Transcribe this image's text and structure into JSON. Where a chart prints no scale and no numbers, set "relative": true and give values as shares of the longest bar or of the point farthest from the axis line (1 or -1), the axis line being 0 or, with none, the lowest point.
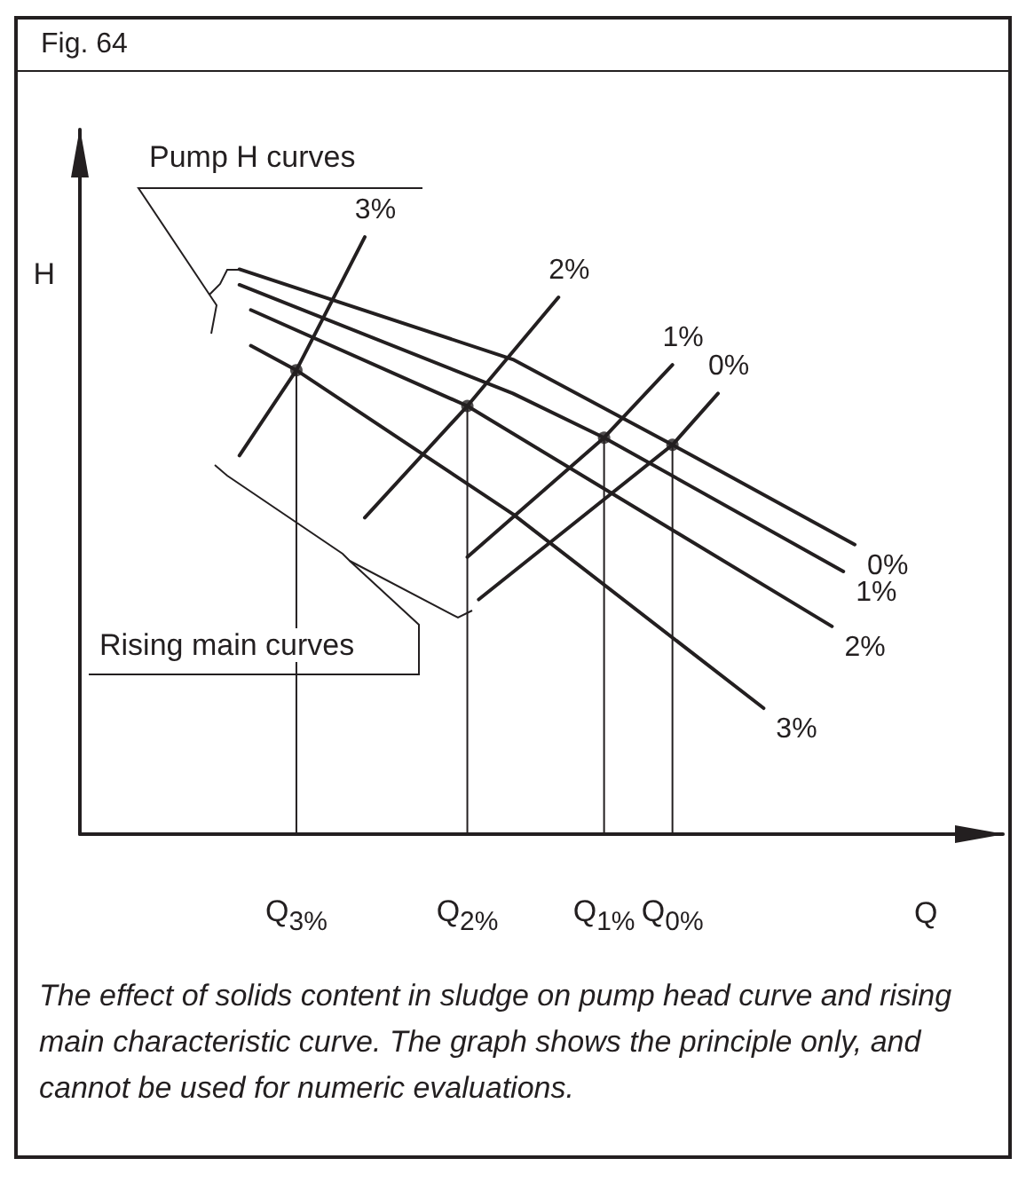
{
  "chart_data": {
    "type": "line",
    "title": "Fig. 64",
    "xlabel": "Q",
    "ylabel": "H",
    "relative": true,
    "tick_labels": "x",
    "annotations": [
      "Pump H curves",
      "Rising main curves",
      "The effect of solids content in sludge on pump head curve and rising main characteristic curve. The graph shows the principle only, and cannot be used for numeric evaluations."
    ],
    "categories": [
      null,
      null,
      null,
      null,
      null,
      null,
      null,
      null,
      null,
      null,
      null,
      null,
      null,
      null,
      null,
      null,
      null,
      null,
      null,
      "Q$_{3%}$",
      null,
      null,
      null,
      null,
      null,
      null,
      null,
      null,
      null,
      null,
      null,
      null,
      null,
      null,
      "Q$_{2%}$",
      null,
      null,
      null,
      null,
      null,
      null,
      null,
      null,
      null,
      null,
      null,
      "Q$_{1%}$",
      null,
      null,
      null,
      null,
      null,
      "Q$_{0%}$",
      null,
      null,
      null,
      null,
      null,
      null,
      null,
      null,
      null,
      null,
      null,
      null,
      null,
      null,
      null,
      null,
      null,
      null,
      null,
      null,
      null,
      null,
      null,
      null,
      null,
      null,
      null,
      null,
      null
    ],
    "series": [
      {
        "name": "0%",
        "color": "#231f20",
        "values": [
          null,
          null,
          null,
          null,
          null,
          null,
          null,
          null,
          null,
          null,
          null,
          null,
          null,
          null,
          0.946,
          null,
          null,
          null,
          null,
          null,
          null,
          null,
          null,
          null,
          null,
          null,
          null,
          null,
          null,
          null,
          null,
          null,
          null,
          null,
          null,
          null,
          null,
          null,
          0.795,
          null,
          null,
          null,
          null,
          null,
          null,
          null,
          null,
          null,
          null,
          null,
          null,
          null,
          0.652,
          null,
          null,
          null,
          null,
          null,
          null,
          null,
          null,
          null,
          null,
          null,
          null,
          null,
          null,
          null,
          0.485,
          null,
          null,
          null,
          null,
          null,
          null,
          null,
          null,
          null,
          null,
          null,
          null,
          null
        ]
      },
      {
        "name": "1%",
        "color": "#231f20",
        "values": [
          null,
          null,
          null,
          null,
          null,
          null,
          null,
          null,
          null,
          null,
          null,
          null,
          null,
          null,
          0.92,
          null,
          null,
          null,
          null,
          null,
          null,
          null,
          null,
          null,
          null,
          null,
          null,
          null,
          null,
          null,
          null,
          null,
          null,
          null,
          null,
          null,
          null,
          null,
          0.738,
          null,
          null,
          null,
          null,
          null,
          null,
          null,
          0.664,
          null,
          null,
          null,
          null,
          null,
          null,
          null,
          null,
          null,
          null,
          null,
          null,
          null,
          null,
          null,
          null,
          null,
          null,
          null,
          null,
          0.44,
          null,
          null,
          null,
          null,
          null,
          null,
          null,
          null,
          null,
          null,
          null,
          null,
          null,
          null
        ]
      },
      {
        "name": "2%",
        "color": "#231f20",
        "values": [
          null,
          null,
          null,
          null,
          null,
          null,
          null,
          null,
          null,
          null,
          null,
          null,
          null,
          null,
          null,
          0.878,
          null,
          null,
          null,
          null,
          null,
          null,
          null,
          null,
          null,
          null,
          null,
          null,
          null,
          null,
          null,
          null,
          null,
          null,
          0.717,
          null,
          null,
          null,
          null,
          null,
          null,
          null,
          null,
          null,
          null,
          null,
          null,
          null,
          null,
          null,
          null,
          null,
          null,
          null,
          null,
          null,
          null,
          null,
          null,
          null,
          null,
          null,
          null,
          null,
          null,
          null,
          0.348,
          null,
          null,
          null,
          null,
          null,
          null,
          null,
          null,
          null,
          null,
          null,
          null,
          null,
          null,
          null
        ]
      },
      {
        "name": "3%",
        "color": "#231f20",
        "values": [
          null,
          null,
          null,
          null,
          null,
          null,
          null,
          null,
          null,
          null,
          null,
          null,
          null,
          null,
          null,
          0.818,
          null,
          null,
          null,
          0.777,
          null,
          null,
          null,
          null,
          null,
          null,
          null,
          null,
          null,
          null,
          null,
          null,
          null,
          null,
          null,
          null,
          null,
          null,
          0.536,
          null,
          null,
          null,
          null,
          null,
          null,
          null,
          null,
          null,
          null,
          null,
          null,
          null,
          null,
          null,
          null,
          null,
          null,
          null,
          null,
          null,
          0.211,
          null,
          null,
          null,
          null,
          null,
          null,
          null,
          null,
          null,
          null,
          null,
          null,
          null,
          null,
          null,
          null,
          null,
          null,
          null,
          null,
          null
        ]
      },
      {
        "name": "3%",
        "color": "#231f20",
        "values": [
          null,
          null,
          null,
          null,
          null,
          null,
          null,
          null,
          null,
          null,
          null,
          null,
          null,
          null,
          0.634,
          null,
          null,
          null,
          null,
          0.777,
          null,
          null,
          null,
          null,
          null,
          1,
          null,
          null,
          null,
          null,
          null,
          null,
          null,
          null,
          null,
          null,
          null,
          null,
          null,
          null,
          null,
          null,
          null,
          null,
          null,
          null,
          null,
          null,
          null,
          null,
          null,
          null,
          null,
          null,
          null,
          null,
          null,
          null,
          null,
          null,
          null,
          null,
          null,
          null,
          null,
          null,
          null,
          null,
          null,
          null,
          null,
          null,
          null,
          null,
          null,
          null,
          null,
          null,
          null,
          null,
          null,
          null
        ]
      },
      {
        "name": "2%",
        "color": "#231f20",
        "values": [
          null,
          null,
          null,
          null,
          null,
          null,
          null,
          null,
          null,
          null,
          null,
          null,
          null,
          null,
          null,
          null,
          null,
          null,
          null,
          null,
          null,
          null,
          null,
          null,
          null,
          0.53,
          null,
          null,
          null,
          null,
          null,
          null,
          null,
          null,
          0.717,
          null,
          null,
          null,
          null,
          null,
          null,
          null,
          0.899,
          null,
          null,
          null,
          null,
          null,
          null,
          null,
          null,
          null,
          null,
          null,
          null,
          null,
          null,
          null,
          null,
          null,
          null,
          null,
          null,
          null,
          null,
          null,
          null,
          null,
          null,
          null,
          null,
          null,
          null,
          null,
          null,
          null,
          null,
          null,
          null,
          null,
          null,
          null
        ]
      },
      {
        "name": "1%",
        "color": "#231f20",
        "values": [
          null,
          null,
          null,
          null,
          null,
          null,
          null,
          null,
          null,
          null,
          null,
          null,
          null,
          null,
          null,
          null,
          null,
          null,
          null,
          null,
          null,
          null,
          null,
          null,
          null,
          null,
          null,
          null,
          null,
          null,
          null,
          null,
          null,
          null,
          0.464,
          null,
          null,
          null,
          null,
          null,
          null,
          null,
          null,
          null,
          null,
          null,
          0.664,
          null,
          null,
          null,
          null,
          null,
          0.786,
          null,
          null,
          null,
          null,
          null,
          null,
          null,
          null,
          null,
          null,
          null,
          null,
          null,
          null,
          null,
          null,
          null,
          null,
          null,
          null,
          null,
          null,
          null,
          null,
          null,
          null,
          null,
          null,
          null
        ]
      },
      {
        "name": "0%",
        "color": "#231f20",
        "values": [
          null,
          null,
          null,
          null,
          null,
          null,
          null,
          null,
          null,
          null,
          null,
          null,
          null,
          null,
          null,
          null,
          null,
          null,
          null,
          null,
          null,
          null,
          null,
          null,
          null,
          null,
          null,
          null,
          null,
          null,
          null,
          null,
          null,
          null,
          null,
          0.393,
          null,
          null,
          null,
          null,
          null,
          null,
          null,
          null,
          null,
          null,
          null,
          null,
          null,
          null,
          null,
          null,
          0.652,
          null,
          null,
          null,
          0.738,
          null,
          null,
          null,
          null,
          null,
          null,
          null,
          null,
          null,
          null,
          null,
          null,
          null,
          null,
          null,
          null,
          null,
          null,
          null,
          null,
          null,
          null,
          null,
          null,
          null
        ]
      },
      {
        "type": "lollipop",
        "color": "#231f20",
        "values": [
          null,
          null,
          null,
          null,
          null,
          null,
          null,
          null,
          null,
          null,
          null,
          null,
          null,
          null,
          null,
          null,
          null,
          null,
          null,
          0.777,
          null,
          null,
          null,
          null,
          null,
          null,
          null,
          null,
          null,
          null,
          null,
          null,
          null,
          null,
          0.717,
          null,
          null,
          null,
          null,
          null,
          null,
          null,
          null,
          null,
          null,
          null,
          0.664,
          null,
          null,
          null,
          null,
          null,
          0.652,
          null,
          null,
          null,
          null,
          null,
          null,
          null,
          null,
          null,
          null,
          null,
          null,
          null,
          null,
          null,
          null,
          null,
          null,
          null,
          null,
          null,
          null,
          null,
          null,
          null,
          null,
          null,
          null,
          null
        ]
      }
    ]
  }
}
